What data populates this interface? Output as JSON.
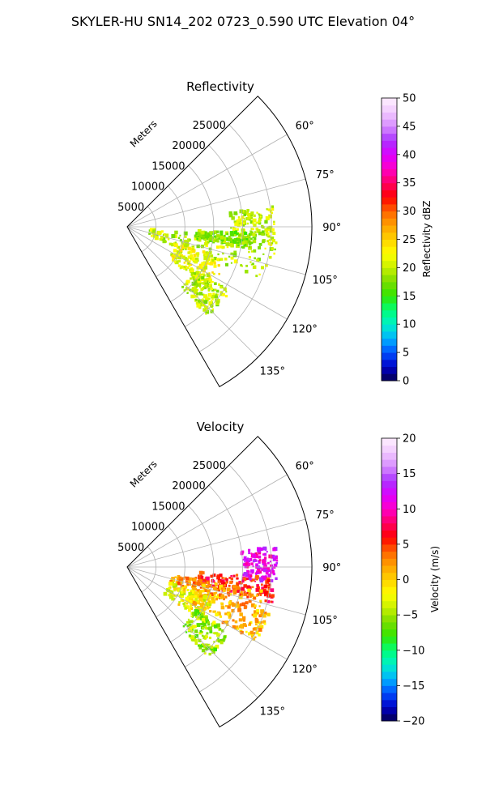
{
  "figure_title": "SKYLER-HU  SN14_202  0723_0.590 UTC Elevation 04°",
  "chart_data": [
    {
      "type": "heatmap",
      "subtype": "polar-ppi-sector",
      "title": "Reflectivity",
      "range_axis_label": "Meters",
      "range_ticks": [
        5000,
        10000,
        15000,
        20000,
        25000
      ],
      "range_tick_labels": [
        "5000",
        "10000",
        "15000",
        "20000",
        "25000"
      ],
      "rlim": [
        0,
        32000
      ],
      "azimuth_ticks": [
        60,
        75,
        90,
        105,
        120,
        135
      ],
      "azimuth_tick_labels": [
        "60°",
        "75°",
        "90°",
        "105°",
        "120°",
        "135°"
      ],
      "azimuth_range_deg": [
        45,
        150
      ],
      "grid": true,
      "colorbar": {
        "label": "Reflectivity dBZ",
        "vmin": 0,
        "vmax": 50,
        "ticks": [
          0,
          5,
          10,
          15,
          20,
          25,
          30,
          35,
          40,
          45,
          50
        ],
        "tick_labels": [
          "0",
          "5",
          "10",
          "15",
          "20",
          "25",
          "30",
          "35",
          "40",
          "45",
          "50"
        ],
        "color_stops": [
          "#05004f",
          "#0000c8",
          "#0050ff",
          "#00b4ff",
          "#00f0c8",
          "#00ff78",
          "#32e600",
          "#78dc00",
          "#c8f000",
          "#ffff00",
          "#ffd200",
          "#ffa000",
          "#ff6400",
          "#ff0000",
          "#ff0064",
          "#ff00c8",
          "#dc00ff",
          "#aa32ff",
          "#d78cff",
          "#f0c8ff",
          "#fff0ff"
        ]
      },
      "echo_regions": [
        {
          "az": [
            82,
            98
          ],
          "r": [
            18000,
            25500
          ],
          "value": 20
        },
        {
          "az": [
            96,
            112
          ],
          "r": [
            4000,
            26000
          ],
          "value": 20
        },
        {
          "az": [
            108,
            128
          ],
          "r": [
            9000,
            18000
          ],
          "value": 22
        },
        {
          "az": [
            122,
            138
          ],
          "r": [
            14000,
            21000
          ],
          "value": 20
        },
        {
          "az": [
            93,
            100
          ],
          "r": [
            12000,
            22000
          ],
          "value": 18
        }
      ]
    },
    {
      "type": "heatmap",
      "subtype": "polar-ppi-sector",
      "title": "Velocity",
      "range_axis_label": "Meters",
      "range_ticks": [
        5000,
        10000,
        15000,
        20000,
        25000
      ],
      "range_tick_labels": [
        "5000",
        "10000",
        "15000",
        "20000",
        "25000"
      ],
      "rlim": [
        0,
        32000
      ],
      "azimuth_ticks": [
        60,
        75,
        90,
        105,
        120,
        135
      ],
      "azimuth_tick_labels": [
        "60°",
        "75°",
        "90°",
        "105°",
        "120°",
        "135°"
      ],
      "azimuth_range_deg": [
        45,
        150
      ],
      "grid": true,
      "colorbar": {
        "label": "Velocity (m/s)",
        "vmin": -20,
        "vmax": 20,
        "ticks": [
          -20,
          -15,
          -10,
          -5,
          0,
          5,
          10,
          15,
          20
        ],
        "tick_labels": [
          "−20",
          "−15",
          "−10",
          "−5",
          "0",
          "5",
          "10",
          "15",
          "20"
        ],
        "color_stops": [
          "#05004f",
          "#0000c8",
          "#0050ff",
          "#00b4ff",
          "#00f0c8",
          "#00ff78",
          "#32e600",
          "#78dc00",
          "#c8f000",
          "#ffff00",
          "#ffd200",
          "#ffa000",
          "#ff6400",
          "#ff0000",
          "#ff0064",
          "#ff00c8",
          "#dc00ff",
          "#aa32ff",
          "#d78cff",
          "#f0c8ff",
          "#fff0ff"
        ]
      },
      "echo_regions": [
        {
          "az": [
            82,
            96
          ],
          "r": [
            20000,
            26000
          ],
          "value": 11
        },
        {
          "az": [
            94,
            104
          ],
          "r": [
            12000,
            26000
          ],
          "value": 6
        },
        {
          "az": [
            100,
            110
          ],
          "r": [
            8000,
            24000
          ],
          "value": 2
        },
        {
          "az": [
            108,
            120
          ],
          "r": [
            12000,
            26000
          ],
          "value": 1
        },
        {
          "az": [
            110,
            126
          ],
          "r": [
            8000,
            16000
          ],
          "value": -2
        },
        {
          "az": [
            122,
            138
          ],
          "r": [
            14000,
            21000
          ],
          "value": -5
        }
      ]
    }
  ]
}
